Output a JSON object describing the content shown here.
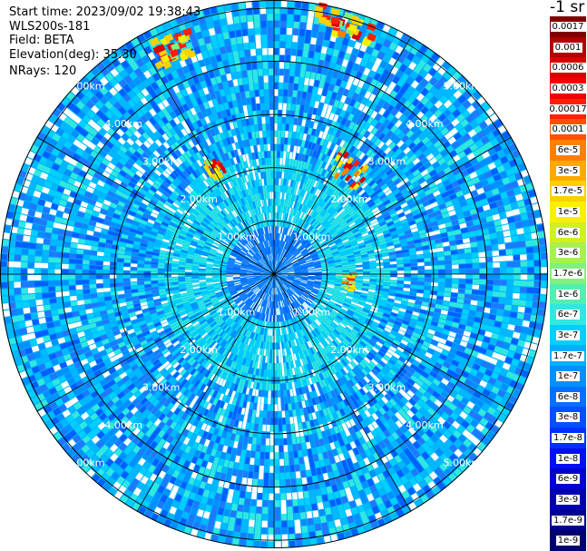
{
  "header": {
    "start_time": "Start time: 2023/09/02 19:38:43",
    "instrument": "WLS200s-181",
    "field": "Field: BETA",
    "elevation": "Elevation(deg): 35.30",
    "nrays": "NRays: 120"
  },
  "colorbar": {
    "title": "-1 sr",
    "labels": [
      "0.0017",
      "0.001",
      "0.0006",
      "0.0003",
      "0.00017",
      "0.0001",
      "6e-5",
      "3e-5",
      "1.7e-5",
      "1e-5",
      "6e-6",
      "3e-6",
      "1.7e-6",
      "1e-6",
      "6e-7",
      "3e-7",
      "1.7e-7",
      "1e-7",
      "6e-8",
      "3e-8",
      "1.7e-8",
      "1e-8",
      "6e-9",
      "3e-9",
      "1.7e-9",
      "1e-9"
    ],
    "colors": [
      "#7f0000",
      "#b00000",
      "#d80000",
      "#f00000",
      "#ff2000",
      "#ff5000",
      "#ff8000",
      "#ffa800",
      "#ffd000",
      "#f8f000",
      "#d0f020",
      "#a8f050",
      "#80f080",
      "#50f0b0",
      "#30e8e0",
      "#00d0ff",
      "#00b0ff",
      "#0090ff",
      "#0070ff",
      "#0050ff",
      "#0030ff",
      "#0010f0",
      "#0000d0",
      "#0000b0",
      "#000090",
      "#000070"
    ]
  },
  "chart_data": {
    "type": "heatmap",
    "projection": "polar",
    "field": "BETA",
    "nrays": 120,
    "ring_labels": [
      "1.00km",
      "2.00km",
      "3.00km",
      "4.00km",
      "5.00km"
    ],
    "ring_ranges_km": [
      1,
      2,
      3,
      4,
      5
    ],
    "max_range_km": 5.15,
    "colorbar_ticks": [
      "0.0017",
      "0.001",
      "0.0006",
      "0.0003",
      "0.00017",
      "0.0001",
      "6e-5",
      "3e-5",
      "1.7e-5",
      "1e-5",
      "6e-6",
      "3e-6",
      "1.7e-6",
      "1e-6",
      "6e-7",
      "3e-7",
      "1.7e-7",
      "1e-7",
      "6e-8",
      "3e-8",
      "1.7e-8",
      "1e-8",
      "6e-9",
      "3e-9",
      "1.7e-9",
      "1e-9"
    ]
  }
}
